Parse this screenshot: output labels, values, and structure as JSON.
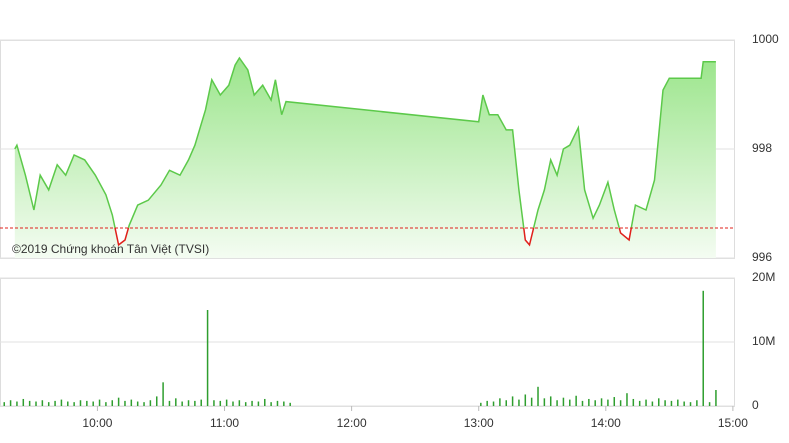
{
  "chart_data": [
    {
      "type": "line",
      "annotation": "©2019 Chứng khoán Tân Việt (TVSI)",
      "x": [
        561,
        562,
        566,
        570,
        573,
        577,
        581,
        585,
        589,
        594,
        599,
        604,
        607,
        610,
        613,
        615,
        619,
        624,
        630,
        634,
        639,
        643,
        646,
        651,
        654,
        658,
        662,
        665,
        667,
        671,
        674,
        678,
        682,
        684,
        687,
        689,
        780,
        782,
        785,
        789,
        793,
        796,
        799,
        802,
        804,
        808,
        811,
        814,
        817,
        820,
        823,
        827,
        830,
        834,
        837,
        841,
        844,
        847,
        851,
        854,
        859,
        863,
        867,
        870,
        885,
        886,
        892
      ],
      "series": [
        {
          "color": "#5cc94a",
          "below_color": "#e0201b",
          "values": [
            998.0,
            998.07,
            997.52,
            996.88,
            997.52,
            997.25,
            997.71,
            997.52,
            997.89,
            997.8,
            997.52,
            997.16,
            996.79,
            996.24,
            996.33,
            996.6,
            996.97,
            997.06,
            997.34,
            997.61,
            997.52,
            997.8,
            998.07,
            998.72,
            999.27,
            998.99,
            999.17,
            999.54,
            999.67,
            999.45,
            998.99,
            999.17,
            998.9,
            999.27,
            998.63,
            998.87,
            998.5,
            998.99,
            998.63,
            998.63,
            998.35,
            998.35,
            997.25,
            996.33,
            996.24,
            996.88,
            997.25,
            997.8,
            997.52,
            998.0,
            998.07,
            998.39,
            997.25,
            996.73,
            996.97,
            997.39,
            996.88,
            996.46,
            996.33,
            996.97,
            996.88,
            997.43,
            999.08,
            999.3,
            999.3,
            999.6,
            999.6
          ]
        }
      ],
      "reference": 996.55,
      "reference_color": "#e0201b",
      "xlim": [
        554,
        901
      ],
      "ylim": [
        996,
        1000
      ],
      "yticks": [
        996,
        998,
        1000
      ],
      "grid": true
    },
    {
      "type": "bar",
      "x": [
        556,
        559,
        562,
        565,
        568,
        571,
        574,
        577,
        580,
        583,
        586,
        589,
        592,
        595,
        598,
        601,
        604,
        607,
        610,
        613,
        616,
        619,
        622,
        625,
        628,
        631,
        634,
        637,
        640,
        643,
        646,
        649,
        652,
        655,
        658,
        661,
        664,
        667,
        670,
        673,
        676,
        679,
        682,
        685,
        688,
        691,
        781,
        784,
        787,
        790,
        793,
        796,
        799,
        802,
        805,
        808,
        811,
        814,
        817,
        820,
        823,
        826,
        829,
        832,
        835,
        838,
        841,
        844,
        847,
        850,
        853,
        856,
        859,
        862,
        865,
        868,
        871,
        874,
        877,
        880,
        883,
        886,
        889,
        892
      ],
      "values": [
        600000,
        900000,
        700000,
        1100000,
        800000,
        700000,
        900000,
        600000,
        800000,
        1000000,
        700000,
        600000,
        900000,
        800000,
        700000,
        1000000,
        600000,
        900000,
        1300000,
        800000,
        1000000,
        700000,
        600000,
        900000,
        1500000,
        3700000,
        800000,
        1200000,
        700000,
        900000,
        800000,
        1000000,
        15000000,
        900000,
        800000,
        1000000,
        700000,
        900000,
        600000,
        800000,
        700000,
        1100000,
        600000,
        800000,
        700000,
        500000,
        500000,
        800000,
        700000,
        1200000,
        900000,
        1500000,
        1000000,
        1800000,
        1300000,
        3000000,
        1200000,
        1500000,
        900000,
        1300000,
        1000000,
        1600000,
        800000,
        1100000,
        900000,
        1200000,
        1000000,
        1400000,
        900000,
        2000000,
        1100000,
        800000,
        1000000,
        700000,
        1200000,
        900000,
        800000,
        1000000,
        700000,
        600000,
        900000,
        18000000,
        600000,
        2500000
      ],
      "color": "#2e9e2e",
      "xlim": [
        554,
        901
      ],
      "ylim": [
        0,
        20000000
      ],
      "yticks": [
        0,
        {
          "value": 10000000,
          "label": "10M"
        },
        {
          "value": 20000000,
          "label": "20M"
        }
      ],
      "xticks": [
        {
          "value": 600,
          "label": "10:00"
        },
        {
          "value": 660,
          "label": "11:00"
        },
        {
          "value": 720,
          "label": "12:00"
        },
        {
          "value": 780,
          "label": "13:00"
        },
        {
          "value": 840,
          "label": "14:00"
        },
        {
          "value": 900,
          "label": "15:00"
        }
      ],
      "grid": true
    }
  ]
}
